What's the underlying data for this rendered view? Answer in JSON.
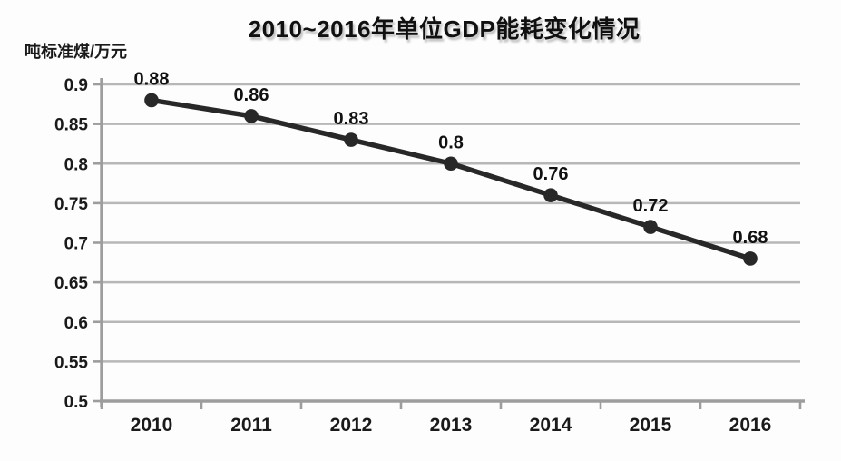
{
  "chart_data": {
    "type": "line",
    "title": "2010~2016年单位GDP能耗变化情况",
    "ylabel": "吨标准煤/万元",
    "xlabel": "",
    "categories": [
      "2010",
      "2011",
      "2012",
      "2013",
      "2014",
      "2015",
      "2016"
    ],
    "values": [
      0.88,
      0.86,
      0.83,
      0.8,
      0.76,
      0.72,
      0.68
    ],
    "data_labels": [
      "0.88",
      "0.86",
      "0.83",
      "0.8",
      "0.76",
      "0.72",
      "0.68"
    ],
    "ylim": [
      0.5,
      0.9
    ],
    "ytick_values": [
      0.9,
      0.85,
      0.8,
      0.75,
      0.7,
      0.65,
      0.6,
      0.55,
      0.5
    ],
    "ytick_labels": [
      "0.9",
      "0.85",
      "0.8",
      "0.75",
      "0.7",
      "0.65",
      "0.6",
      "0.55",
      "0.5"
    ],
    "grid": "horizontal-only",
    "legend_position": "none",
    "colors": {
      "line": "#282828",
      "marker": "#282828",
      "grid": "#b7b7b7",
      "axis": "#9d9d9d",
      "text": "#1a1a1a"
    }
  }
}
